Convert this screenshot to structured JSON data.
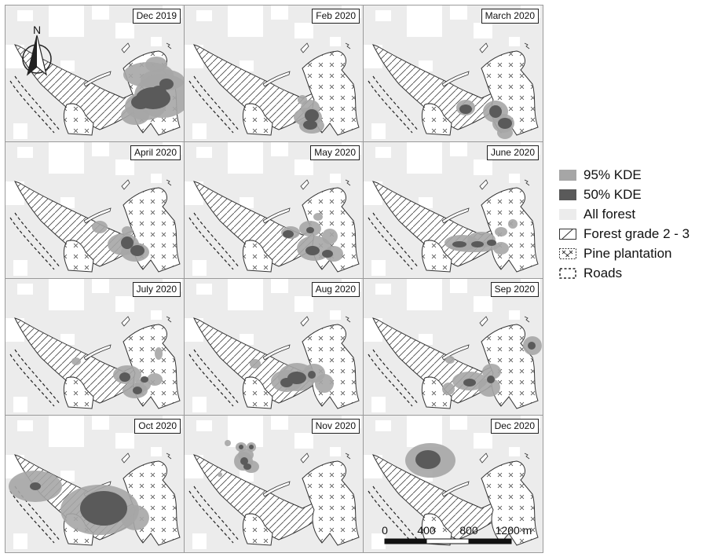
{
  "panels": [
    {
      "label": "Dec 2019"
    },
    {
      "label": "Feb 2020"
    },
    {
      "label": "March 2020"
    },
    {
      "label": "April 2020"
    },
    {
      "label": "May 2020"
    },
    {
      "label": "June 2020"
    },
    {
      "label": "July 2020"
    },
    {
      "label": "Aug 2020"
    },
    {
      "label": "Sep 2020"
    },
    {
      "label": "Oct 2020"
    },
    {
      "label": "Nov 2020"
    },
    {
      "label": "Dec 2020"
    }
  ],
  "north_arrow": {
    "label": "N"
  },
  "legend": {
    "items": [
      {
        "label": "95% KDE",
        "symbol": "kde95"
      },
      {
        "label": "50% KDE",
        "symbol": "kde50"
      },
      {
        "label": "All forest",
        "symbol": "forest"
      },
      {
        "label": "Forest grade 2 - 3",
        "symbol": "hatch"
      },
      {
        "label": "Pine plantation",
        "symbol": "cross"
      },
      {
        "label": "Roads",
        "symbol": "dashed"
      }
    ]
  },
  "scale_bar": {
    "ticks": [
      "0",
      "400",
      "800",
      "1200 m"
    ]
  },
  "colors": {
    "background": "#ffffff",
    "all_forest": "#ececec",
    "kde95": "#a6a6a6",
    "kde50": "#5a5a5a",
    "outline": "#333333"
  }
}
